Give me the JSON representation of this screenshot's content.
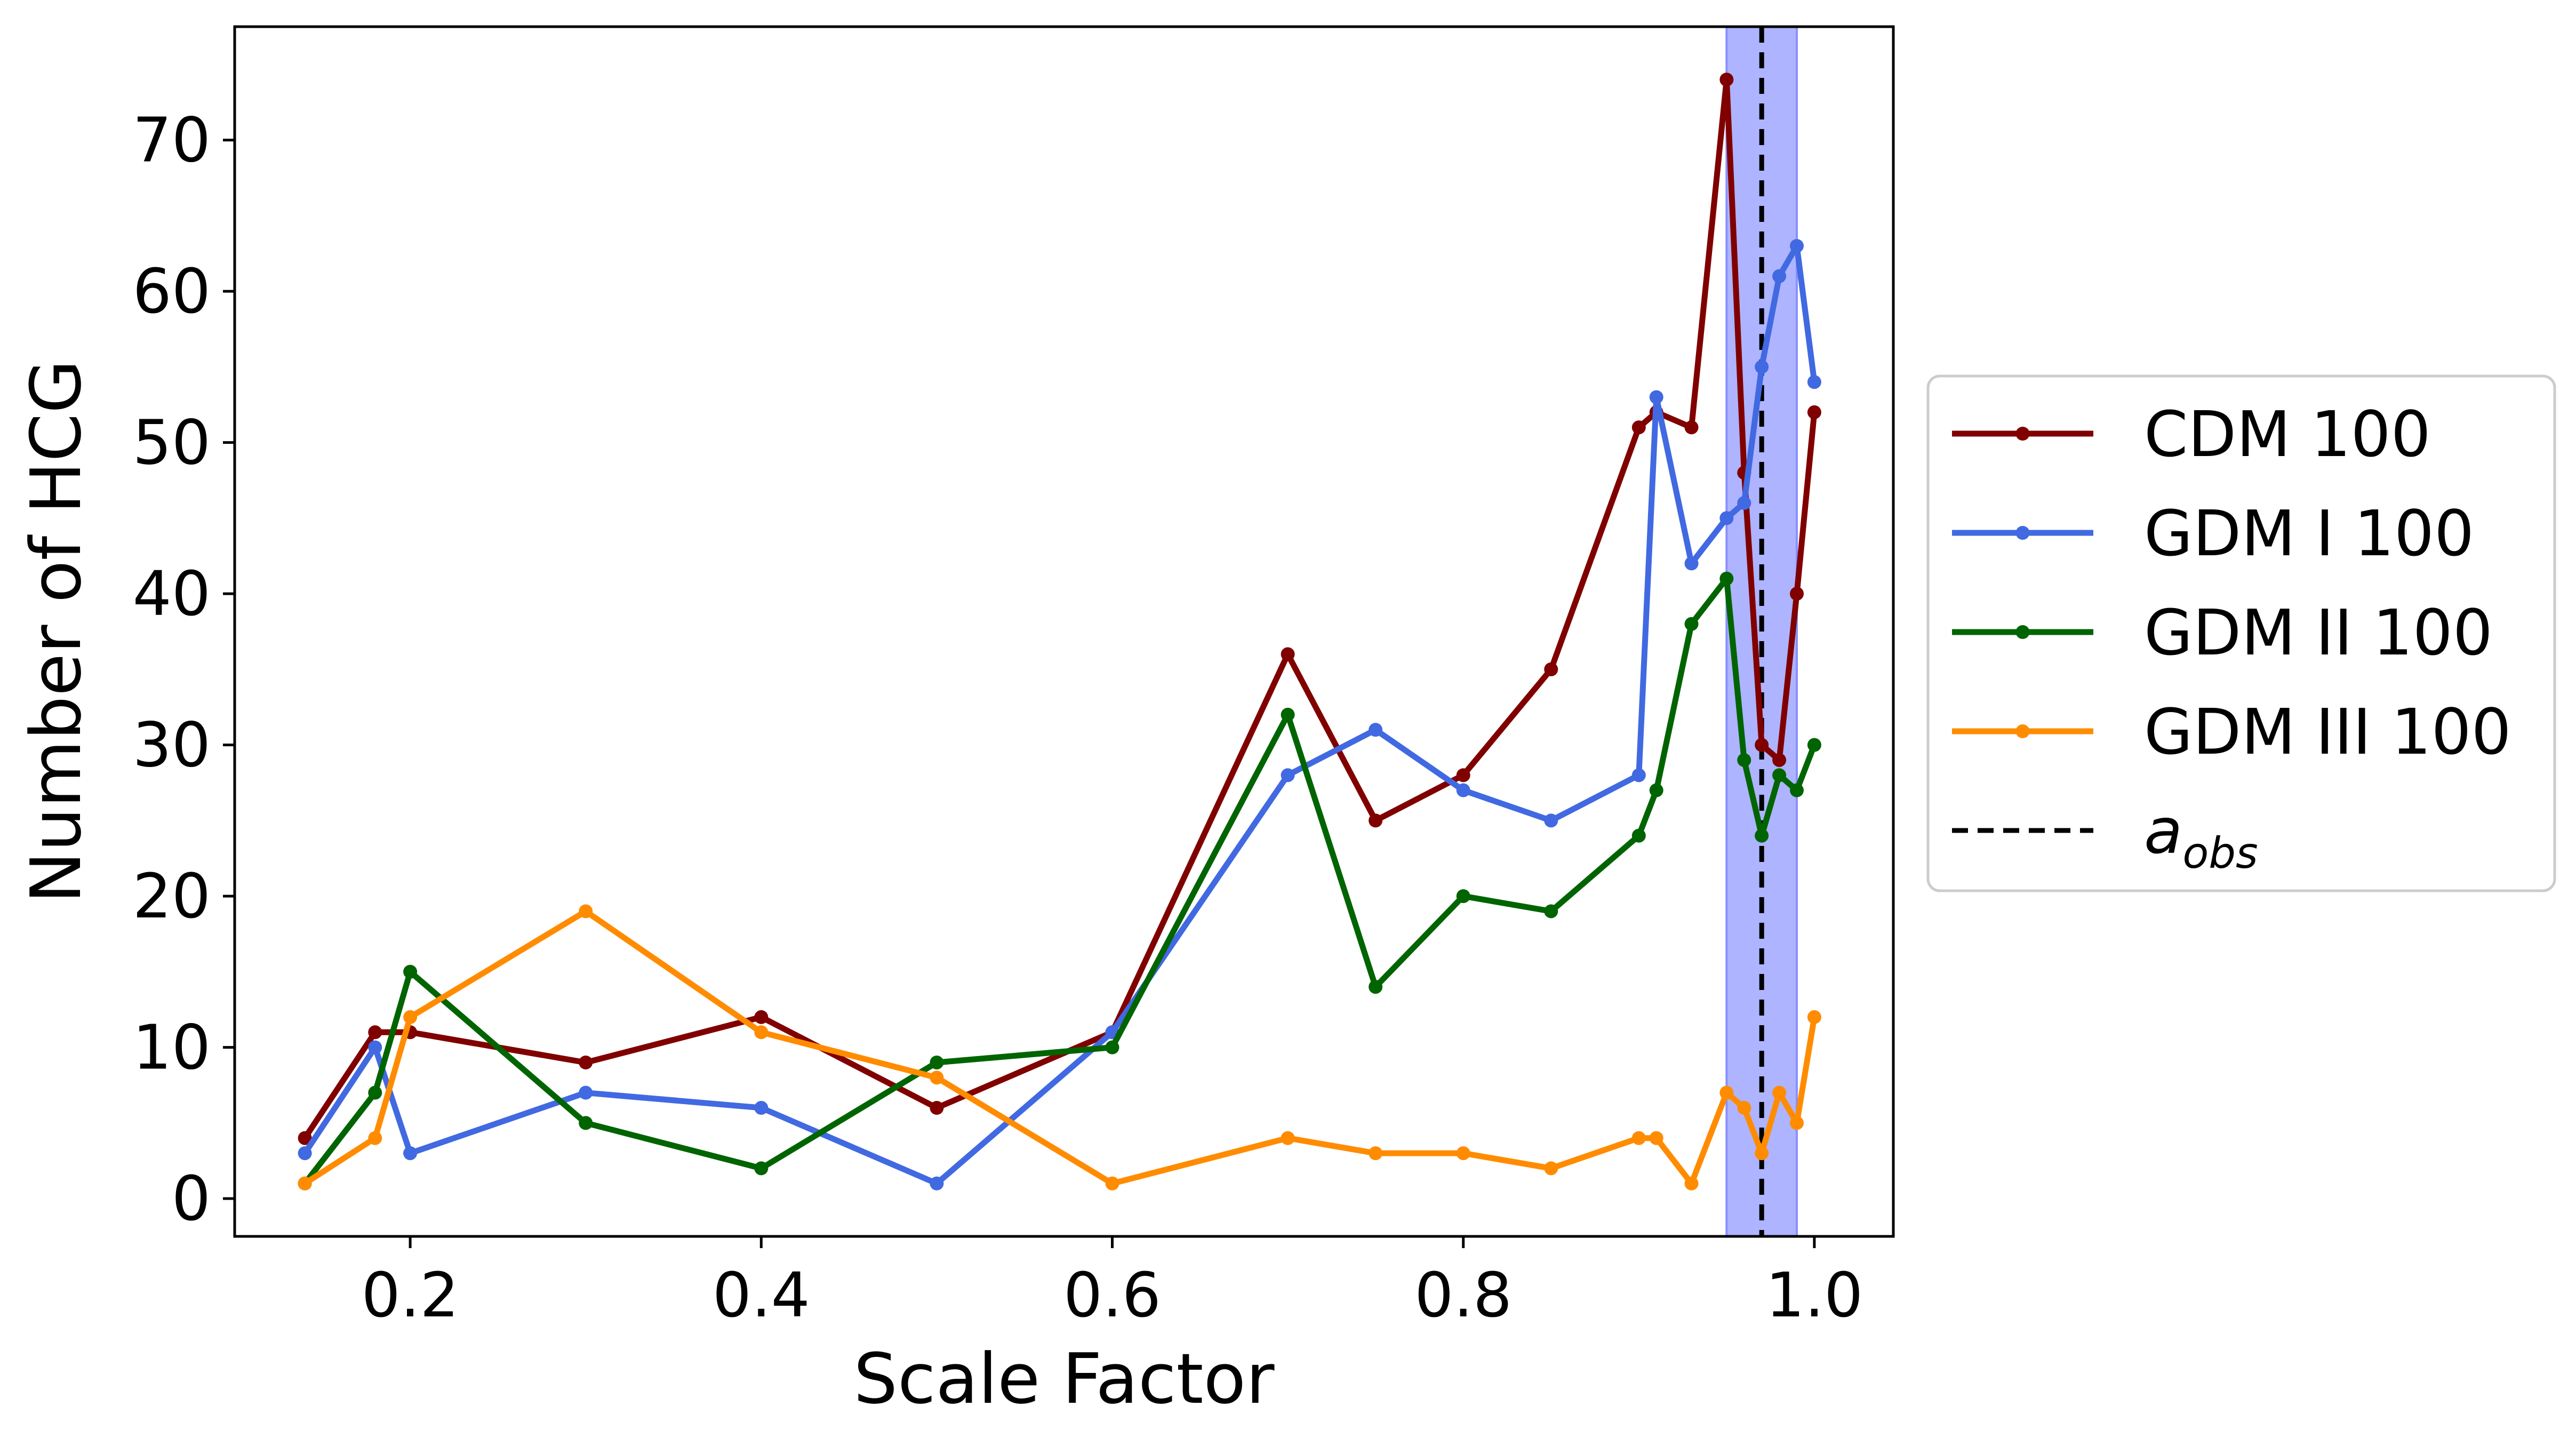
{
  "chart_data": {
    "type": "line",
    "xlabel": "Scale Factor",
    "ylabel": "Number of HCG",
    "xlim": [
      0.1,
      1.045
    ],
    "ylim": [
      -2.5,
      77.5
    ],
    "x_ticks": [
      0.2,
      0.4,
      0.6,
      0.8,
      1.0
    ],
    "x_tick_labels": [
      "0.2",
      "0.4",
      "0.6",
      "0.8",
      "1.0"
    ],
    "y_ticks": [
      0,
      10,
      20,
      30,
      40,
      50,
      60,
      70
    ],
    "y_tick_labels": [
      "0",
      "10",
      "20",
      "30",
      "40",
      "50",
      "60",
      "70"
    ],
    "grid": false,
    "legend_placement": "outside-right",
    "shaded_band": {
      "x_start": 0.95,
      "x_end": 0.99,
      "color": "#aab0ff"
    },
    "vertical_line": {
      "x": 0.97,
      "style": "dashed",
      "color": "#000000",
      "label_main": "a",
      "label_sub": "obs"
    },
    "series": [
      {
        "name": "CDM 100",
        "color": "#800000",
        "x": [
          0.14,
          0.18,
          0.2,
          0.3,
          0.4,
          0.5,
          0.6,
          0.7,
          0.75,
          0.8,
          0.85,
          0.9,
          0.91,
          0.93,
          0.95,
          0.96,
          0.97,
          0.98,
          0.99,
          1.0
        ],
        "y": [
          4,
          11,
          11,
          9,
          12,
          6,
          11,
          36,
          25,
          28,
          35,
          51,
          52,
          51,
          74,
          48,
          30,
          29,
          40,
          52
        ]
      },
      {
        "name": "GDM I 100",
        "color": "#4169e1",
        "x": [
          0.14,
          0.18,
          0.2,
          0.3,
          0.4,
          0.5,
          0.6,
          0.7,
          0.75,
          0.8,
          0.85,
          0.9,
          0.91,
          0.93,
          0.95,
          0.96,
          0.97,
          0.98,
          0.99,
          1.0
        ],
        "y": [
          3,
          10,
          3,
          7,
          6,
          1,
          11,
          28,
          31,
          27,
          25,
          28,
          53,
          42,
          45,
          46,
          55,
          61,
          63,
          54
        ]
      },
      {
        "name": "GDM II 100",
        "color": "#006400",
        "x": [
          0.14,
          0.18,
          0.2,
          0.3,
          0.4,
          0.5,
          0.6,
          0.7,
          0.75,
          0.8,
          0.85,
          0.9,
          0.91,
          0.93,
          0.95,
          0.96,
          0.97,
          0.98,
          0.99,
          1.0
        ],
        "y": [
          1,
          7,
          15,
          5,
          2,
          9,
          10,
          32,
          14,
          20,
          19,
          24,
          27,
          38,
          41,
          29,
          24,
          28,
          27,
          30
        ]
      },
      {
        "name": "GDM III 100",
        "color": "#ff8c00",
        "x": [
          0.14,
          0.18,
          0.2,
          0.3,
          0.4,
          0.5,
          0.6,
          0.7,
          0.75,
          0.8,
          0.85,
          0.9,
          0.91,
          0.93,
          0.95,
          0.96,
          0.97,
          0.98,
          0.99,
          1.0
        ],
        "y": [
          1,
          4,
          12,
          19,
          11,
          8,
          1,
          4,
          3,
          3,
          2,
          4,
          4,
          1,
          7,
          6,
          3,
          7,
          5,
          12
        ]
      }
    ]
  }
}
